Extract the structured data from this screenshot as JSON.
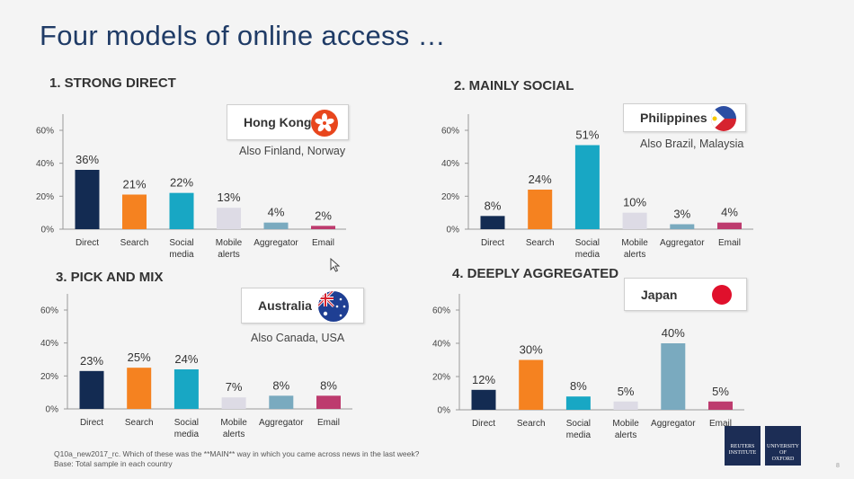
{
  "title": "Four models of online access …",
  "footnote": {
    "line1": "Q10a_new2017_rc. Which of these was the **MAIN** way in which you came across news in the last week?",
    "line2": "Base: Total sample in each country"
  },
  "logos": {
    "reuters": [
      "REUTERS",
      "INSTITUTE"
    ],
    "oxford": [
      "UNIVERSITY OF",
      "OXFORD"
    ]
  },
  "page_number": "8",
  "colors": {
    "Direct": "#132b52",
    "Search": "#f58220",
    "Social media": "#18a7c4",
    "Mobile alerts": "#dddbe5",
    "Aggregator": "#7aaabf",
    "Email": "#bd3b6e"
  },
  "panels": [
    {
      "heading": "1. STRONG DIRECT",
      "country": "Hong Kong",
      "flag_icon": "hong-kong-flag-icon",
      "also": "Also Finland, Norway"
    },
    {
      "heading": "2. MAINLY SOCIAL",
      "country": "Philippines",
      "flag_icon": "philippines-flag-icon",
      "also": "Also Brazil, Malaysia"
    },
    {
      "heading": "3. PICK AND MIX",
      "country": "Australia",
      "flag_icon": "australia-flag-icon",
      "also": "Also Canada, USA"
    },
    {
      "heading": "4. DEEPLY AGGREGATED",
      "country": "Japan",
      "flag_icon": "japan-flag-icon",
      "also": ""
    }
  ],
  "chart_data": [
    {
      "type": "bar",
      "categories": [
        "Direct",
        "Search",
        "Social media",
        "Mobile alerts",
        "Aggregator",
        "Email"
      ],
      "values": [
        36,
        21,
        22,
        13,
        4,
        2
      ],
      "value_labels": [
        "36%",
        "21%",
        "22%",
        "13%",
        "4%",
        "2%"
      ],
      "yticks": [
        "0%",
        "20%",
        "40%",
        "60%"
      ],
      "ylim": [
        0,
        60
      ]
    },
    {
      "type": "bar",
      "categories": [
        "Direct",
        "Search",
        "Social media",
        "Mobile alerts",
        "Aggregator",
        "Email"
      ],
      "values": [
        8,
        24,
        51,
        10,
        3,
        4
      ],
      "value_labels": [
        "8%",
        "24%",
        "51%",
        "10%",
        "3%",
        "4%"
      ],
      "yticks": [
        "0%",
        "20%",
        "40%",
        "60%"
      ],
      "ylim": [
        0,
        60
      ]
    },
    {
      "type": "bar",
      "categories": [
        "Direct",
        "Search",
        "Social media",
        "Mobile alerts",
        "Aggregator",
        "Email"
      ],
      "values": [
        23,
        25,
        24,
        7,
        8,
        8
      ],
      "value_labels": [
        "23%",
        "25%",
        "24%",
        "7%",
        "8%",
        "8%"
      ],
      "yticks": [
        "0%",
        "20%",
        "40%",
        "60%"
      ],
      "ylim": [
        0,
        60
      ]
    },
    {
      "type": "bar",
      "categories": [
        "Direct",
        "Search",
        "Social media",
        "Mobile alerts",
        "Aggregator",
        "Email"
      ],
      "values": [
        12,
        30,
        8,
        5,
        40,
        5
      ],
      "value_labels": [
        "12%",
        "30%",
        "8%",
        "5%",
        "40%",
        "5%"
      ],
      "yticks": [
        "0%",
        "20%",
        "40%",
        "60%"
      ],
      "ylim": [
        0,
        60
      ]
    }
  ]
}
